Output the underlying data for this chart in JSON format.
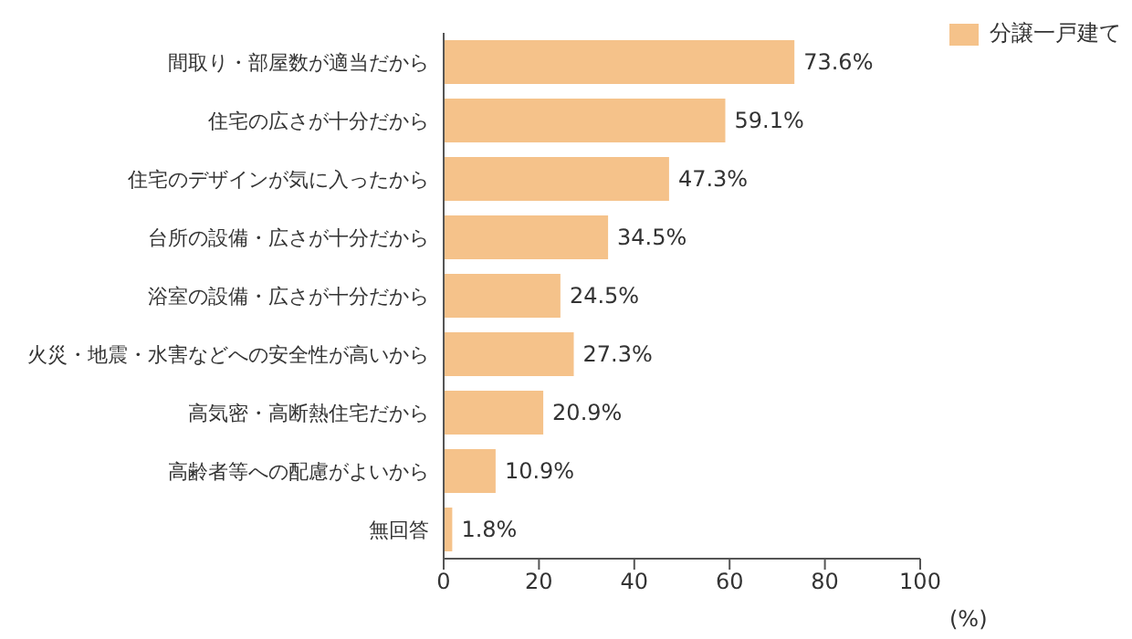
{
  "chart_data": {
    "type": "bar",
    "orientation": "horizontal",
    "categories": [
      "間取り・部屋数が適当だから",
      "住宅の広さが十分だから",
      "住宅のデザインが気に入ったから",
      "台所の設備・広さが十分だから",
      "浴室の設備・広さが十分だから",
      "火災・地震・水害などへの安全性が高いから",
      "高気密・高断熱住宅だから",
      "高齢者等への配慮がよいから",
      "無回答"
    ],
    "series": [
      {
        "name": "分譲一戸建て",
        "color": "#f5c28a",
        "values": [
          73.6,
          59.1,
          47.3,
          34.5,
          24.5,
          27.3,
          20.9,
          10.9,
          1.8
        ],
        "value_labels": [
          "73.6%",
          "59.1%",
          "47.3%",
          "34.5%",
          "24.5%",
          "27.3%",
          "20.9%",
          "10.9%",
          "1.8%"
        ]
      }
    ],
    "xlim": [
      0,
      100
    ],
    "xticks": [
      0,
      20,
      40,
      60,
      80,
      100
    ],
    "xlabel": "(%)",
    "legend": "top right"
  }
}
